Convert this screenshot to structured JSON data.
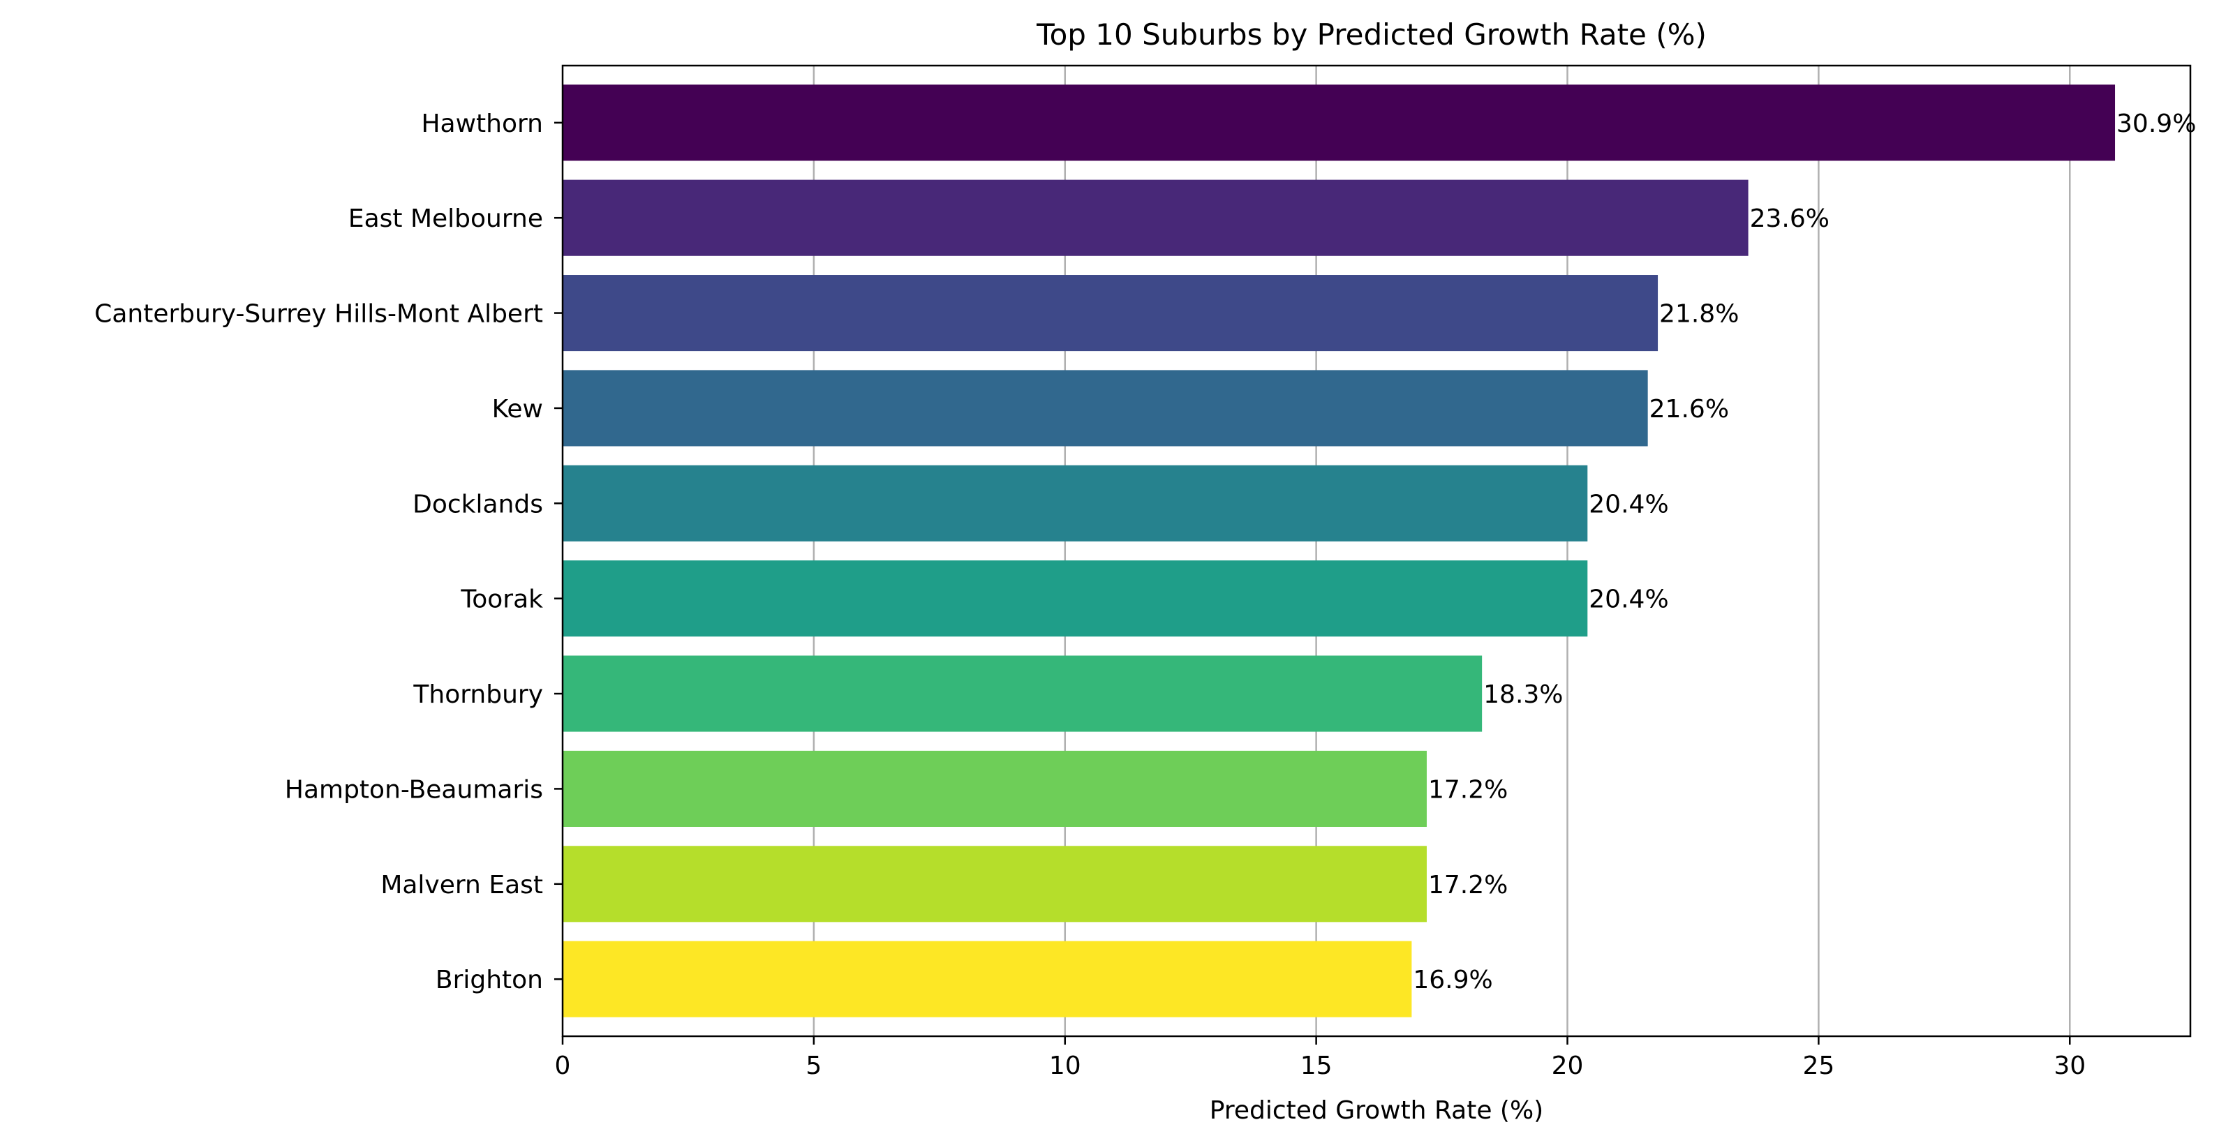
{
  "chart_data": {
    "type": "bar",
    "orientation": "horizontal",
    "title": "Top 10 Suburbs by Predicted Growth Rate (%)",
    "xlabel": "Predicted Growth Rate (%)",
    "ylabel": "",
    "xlim": [
      0,
      32.4
    ],
    "xticks": [
      0,
      5,
      10,
      15,
      20,
      25,
      30
    ],
    "grid": "x",
    "categories": [
      "Hawthorn",
      "East Melbourne",
      "Canterbury-Surrey Hills-Mont Albert",
      "Kew",
      "Docklands",
      "Toorak",
      "Thornbury",
      "Hampton-Beaumaris",
      "Malvern East",
      "Brighton"
    ],
    "values": [
      30.9,
      23.6,
      21.8,
      21.6,
      20.4,
      20.4,
      18.3,
      17.2,
      17.2,
      16.9
    ],
    "data_labels": [
      "30.9%",
      "23.6%",
      "21.8%",
      "21.6%",
      "20.4%",
      "20.4%",
      "18.3%",
      "17.2%",
      "17.2%",
      "16.9%"
    ],
    "colors": [
      "#440154",
      "#482878",
      "#3e4989",
      "#31688e",
      "#26828e",
      "#1f9e89",
      "#35b779",
      "#6ece58",
      "#b5de2b",
      "#fde725"
    ],
    "grid_color": "#b0b0b0"
  }
}
